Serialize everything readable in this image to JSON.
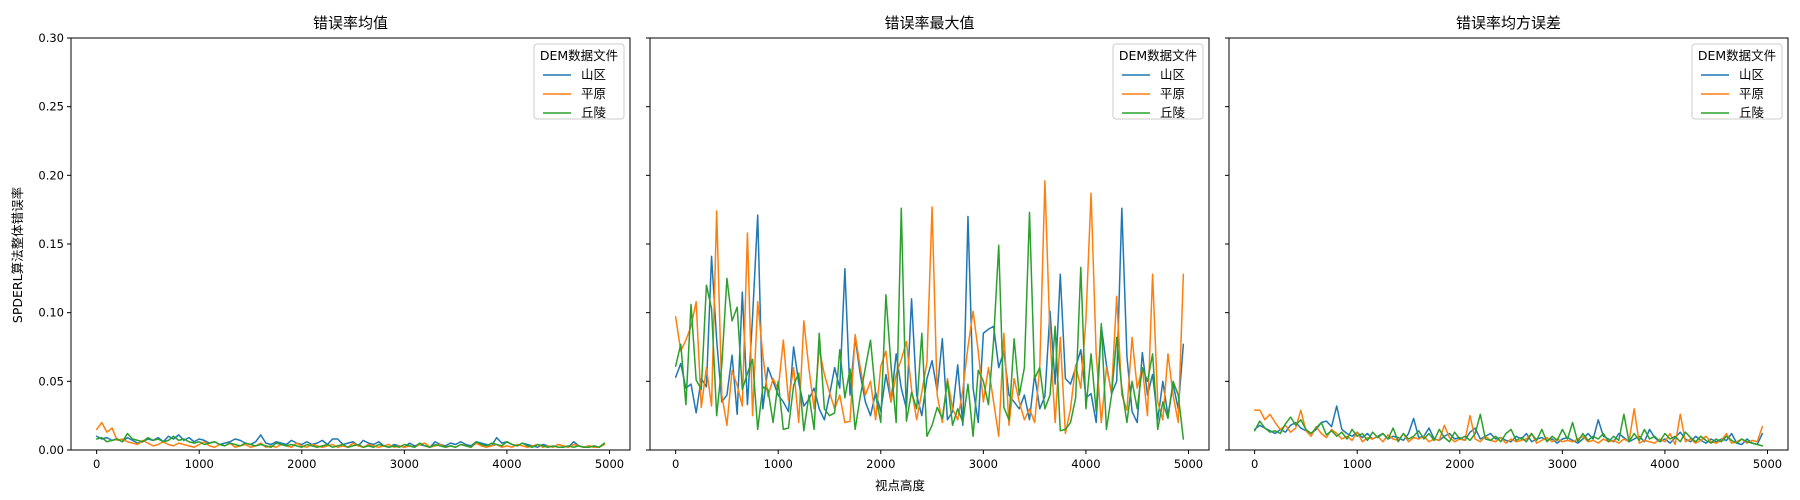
{
  "figure": {
    "ylabel": "SPDERL算法整体错误率",
    "xlabel": "视点高度"
  },
  "colors": {
    "山区": "#1f77b4",
    "平原": "#ff7f0e",
    "丘陵": "#2ca02c"
  },
  "chart_data": [
    {
      "type": "line",
      "title": "错误率均值",
      "xlabel": "",
      "ylabel": "SPDERL算法整体错误率",
      "xlim": [
        -250,
        5200
      ],
      "ylim": [
        0,
        0.3
      ],
      "xticks": [
        0,
        1000,
        2000,
        3000,
        4000,
        5000
      ],
      "yticks": [
        0.0,
        0.05,
        0.1,
        0.15,
        0.2,
        0.25,
        0.3
      ],
      "yticklabels": [
        "0.00",
        "0.05",
        "0.10",
        "0.15",
        "0.20",
        "0.25",
        "0.30"
      ],
      "legend": {
        "title": "DEM数据文件",
        "loc": "upper-right"
      },
      "x": {
        "start": 0,
        "step": 50,
        "count": 100
      },
      "series": [
        {
          "name": "山区",
          "color": "#1f77b4",
          "values": [
            0.01,
            0.008,
            0.009,
            0.007,
            0.008,
            0.006,
            0.009,
            0.007,
            0.005,
            0.006,
            0.008,
            0.007,
            0.009,
            0.006,
            0.01,
            0.008,
            0.011,
            0.007,
            0.009,
            0.006,
            0.008,
            0.007,
            0.005,
            0.006,
            0.004,
            0.005,
            0.006,
            0.008,
            0.007,
            0.005,
            0.004,
            0.006,
            0.011,
            0.005,
            0.004,
            0.006,
            0.005,
            0.004,
            0.007,
            0.005,
            0.004,
            0.006,
            0.004,
            0.005,
            0.007,
            0.004,
            0.008,
            0.008,
            0.004,
            0.005,
            0.006,
            0.003,
            0.007,
            0.005,
            0.004,
            0.006,
            0.003,
            0.002,
            0.004,
            0.003,
            0.002,
            0.005,
            0.003,
            0.004,
            0.003,
            0.002,
            0.006,
            0.004,
            0.003,
            0.005,
            0.004,
            0.006,
            0.004,
            0.003,
            0.006,
            0.005,
            0.004,
            0.003,
            0.009,
            0.005,
            0.006,
            0.004,
            0.003,
            0.005,
            0.004,
            0.003,
            0.002,
            0.004,
            0.003,
            0.002,
            0.004,
            0.003,
            0.002,
            0.006,
            0.003,
            0.002,
            0.003,
            0.002,
            0.002,
            0.004
          ]
        },
        {
          "name": "平原",
          "color": "#ff7f0e",
          "values": [
            0.015,
            0.02,
            0.013,
            0.016,
            0.007,
            0.008,
            0.006,
            0.005,
            0.004,
            0.007,
            0.005,
            0.003,
            0.004,
            0.006,
            0.004,
            0.003,
            0.005,
            0.004,
            0.003,
            0.002,
            0.004,
            0.006,
            0.003,
            0.002,
            0.004,
            0.003,
            0.005,
            0.002,
            0.003,
            0.004,
            0.002,
            0.003,
            0.005,
            0.002,
            0.003,
            0.002,
            0.004,
            0.003,
            0.002,
            0.005,
            0.003,
            0.002,
            0.004,
            0.003,
            0.002,
            0.003,
            0.004,
            0.002,
            0.003,
            0.002,
            0.005,
            0.003,
            0.002,
            0.004,
            0.003,
            0.002,
            0.003,
            0.004,
            0.002,
            0.003,
            0.002,
            0.003,
            0.002,
            0.004,
            0.005,
            0.002,
            0.003,
            0.004,
            0.002,
            0.003,
            0.002,
            0.004,
            0.003,
            0.002,
            0.005,
            0.003,
            0.002,
            0.003,
            0.004,
            0.002,
            0.003,
            0.002,
            0.004,
            0.003,
            0.002,
            0.003,
            0.004,
            0.002,
            0.003,
            0.002,
            0.004,
            0.003,
            0.002,
            0.004,
            0.003,
            0.002,
            0.003,
            0.002,
            0.002,
            0.004
          ]
        },
        {
          "name": "丘陵",
          "color": "#2ca02c",
          "values": [
            0.008,
            0.009,
            0.006,
            0.007,
            0.008,
            0.006,
            0.012,
            0.008,
            0.007,
            0.006,
            0.009,
            0.007,
            0.008,
            0.006,
            0.007,
            0.01,
            0.007,
            0.008,
            0.006,
            0.005,
            0.006,
            0.004,
            0.005,
            0.006,
            0.004,
            0.003,
            0.005,
            0.004,
            0.003,
            0.005,
            0.004,
            0.003,
            0.004,
            0.003,
            0.002,
            0.005,
            0.004,
            0.003,
            0.004,
            0.003,
            0.002,
            0.004,
            0.003,
            0.002,
            0.003,
            0.004,
            0.002,
            0.003,
            0.004,
            0.002,
            0.003,
            0.004,
            0.002,
            0.003,
            0.002,
            0.004,
            0.003,
            0.002,
            0.003,
            0.002,
            0.004,
            0.003,
            0.002,
            0.005,
            0.003,
            0.002,
            0.004,
            0.003,
            0.002,
            0.003,
            0.002,
            0.004,
            0.003,
            0.002,
            0.006,
            0.004,
            0.003,
            0.005,
            0.004,
            0.003,
            0.006,
            0.004,
            0.003,
            0.005,
            0.003,
            0.002,
            0.004,
            0.003,
            0.002,
            0.003,
            0.002,
            0.002,
            0.003,
            0.002,
            0.003,
            0.002,
            0.002,
            0.003,
            0.002,
            0.005
          ]
        }
      ]
    },
    {
      "type": "line",
      "title": "错误率最大值",
      "xlabel": "视点高度",
      "ylabel": "",
      "xlim": [
        -250,
        5200
      ],
      "ylim": [
        0,
        0.3
      ],
      "xticks": [
        0,
        1000,
        2000,
        3000,
        4000,
        5000
      ],
      "legend": {
        "title": "DEM数据文件",
        "loc": "upper-right"
      },
      "x": {
        "start": 0,
        "step": 50,
        "count": 100
      },
      "series": [
        {
          "name": "山区",
          "color": "#1f77b4",
          "values": [
            0.053,
            0.063,
            0.045,
            0.048,
            0.027,
            0.052,
            0.046,
            0.141,
            0.08,
            0.035,
            0.04,
            0.069,
            0.026,
            0.115,
            0.033,
            0.097,
            0.171,
            0.03,
            0.06,
            0.05,
            0.04,
            0.035,
            0.028,
            0.075,
            0.049,
            0.032,
            0.037,
            0.045,
            0.03,
            0.022,
            0.04,
            0.06,
            0.045,
            0.132,
            0.04,
            0.082,
            0.055,
            0.035,
            0.025,
            0.042,
            0.028,
            0.055,
            0.035,
            0.07,
            0.045,
            0.03,
            0.11,
            0.04,
            0.025,
            0.052,
            0.065,
            0.043,
            0.081,
            0.022,
            0.028,
            0.062,
            0.018,
            0.17,
            0.045,
            0.02,
            0.085,
            0.088,
            0.09,
            0.06,
            0.072,
            0.04,
            0.035,
            0.03,
            0.04,
            0.022,
            0.055,
            0.03,
            0.039,
            0.101,
            0.048,
            0.128,
            0.052,
            0.048,
            0.06,
            0.073,
            0.038,
            0.041,
            0.02,
            0.09,
            0.062,
            0.041,
            0.05,
            0.176,
            0.068,
            0.028,
            0.02,
            0.071,
            0.04,
            0.055,
            0.022,
            0.05,
            0.025,
            0.048,
            0.03,
            0.077
          ]
        },
        {
          "name": "平原",
          "color": "#ff7f0e",
          "values": [
            0.097,
            0.072,
            0.08,
            0.09,
            0.108,
            0.031,
            0.06,
            0.032,
            0.174,
            0.04,
            0.018,
            0.058,
            0.047,
            0.032,
            0.158,
            0.025,
            0.108,
            0.069,
            0.039,
            0.052,
            0.044,
            0.08,
            0.036,
            0.06,
            0.02,
            0.094,
            0.059,
            0.03,
            0.074,
            0.055,
            0.042,
            0.03,
            0.04,
            0.02,
            0.021,
            0.084,
            0.06,
            0.04,
            0.05,
            0.022,
            0.061,
            0.072,
            0.035,
            0.055,
            0.066,
            0.079,
            0.044,
            0.022,
            0.042,
            0.064,
            0.177,
            0.04,
            0.02,
            0.052,
            0.03,
            0.022,
            0.044,
            0.075,
            0.101,
            0.072,
            0.035,
            0.06,
            0.035,
            0.01,
            0.085,
            0.018,
            0.052,
            0.035,
            0.022,
            0.03,
            0.02,
            0.06,
            0.196,
            0.082,
            0.02,
            0.082,
            0.012,
            0.03,
            0.062,
            0.045,
            0.095,
            0.187,
            0.07,
            0.02,
            0.06,
            0.042,
            0.112,
            0.04,
            0.029,
            0.082,
            0.045,
            0.06,
            0.025,
            0.128,
            0.035,
            0.022,
            0.07,
            0.04,
            0.02,
            0.128
          ]
        },
        {
          "name": "丘陵",
          "color": "#2ca02c",
          "values": [
            0.061,
            0.077,
            0.033,
            0.106,
            0.051,
            0.044,
            0.12,
            0.103,
            0.025,
            0.062,
            0.125,
            0.094,
            0.104,
            0.044,
            0.056,
            0.066,
            0.015,
            0.046,
            0.044,
            0.02,
            0.05,
            0.015,
            0.016,
            0.047,
            0.056,
            0.014,
            0.04,
            0.015,
            0.085,
            0.03,
            0.025,
            0.027,
            0.073,
            0.038,
            0.059,
            0.015,
            0.039,
            0.06,
            0.08,
            0.04,
            0.02,
            0.113,
            0.061,
            0.02,
            0.176,
            0.021,
            0.042,
            0.03,
            0.085,
            0.01,
            0.018,
            0.031,
            0.023,
            0.05,
            0.018,
            0.03,
            0.02,
            0.048,
            0.01,
            0.058,
            0.05,
            0.033,
            0.08,
            0.149,
            0.031,
            0.022,
            0.081,
            0.04,
            0.06,
            0.173,
            0.052,
            0.06,
            0.03,
            0.04,
            0.09,
            0.014,
            0.015,
            0.02,
            0.038,
            0.133,
            0.03,
            0.07,
            0.028,
            0.092,
            0.015,
            0.04,
            0.082,
            0.045,
            0.02,
            0.05,
            0.03,
            0.06,
            0.05,
            0.07,
            0.015,
            0.035,
            0.023,
            0.05,
            0.04,
            0.008
          ]
        }
      ]
    },
    {
      "type": "line",
      "title": "错误率均方误差",
      "xlabel": "",
      "ylabel": "",
      "xlim": [
        -250,
        5200
      ],
      "ylim": [
        0,
        0.3
      ],
      "xticks": [
        0,
        1000,
        2000,
        3000,
        4000,
        5000
      ],
      "legend": {
        "title": "DEM数据文件",
        "loc": "upper-right"
      },
      "x": {
        "start": 0,
        "step": 50,
        "count": 100
      },
      "series": [
        {
          "name": "山区",
          "color": "#1f77b4",
          "values": [
            0.015,
            0.018,
            0.016,
            0.014,
            0.012,
            0.015,
            0.013,
            0.018,
            0.02,
            0.016,
            0.014,
            0.012,
            0.015,
            0.02,
            0.021,
            0.017,
            0.032,
            0.015,
            0.012,
            0.01,
            0.013,
            0.009,
            0.012,
            0.008,
            0.01,
            0.012,
            0.008,
            0.01,
            0.009,
            0.007,
            0.012,
            0.023,
            0.009,
            0.01,
            0.016,
            0.008,
            0.007,
            0.01,
            0.012,
            0.008,
            0.009,
            0.007,
            0.013,
            0.016,
            0.008,
            0.01,
            0.012,
            0.008,
            0.009,
            0.007,
            0.006,
            0.01,
            0.008,
            0.012,
            0.006,
            0.008,
            0.009,
            0.007,
            0.008,
            0.005,
            0.008,
            0.009,
            0.007,
            0.005,
            0.008,
            0.012,
            0.008,
            0.022,
            0.01,
            0.008,
            0.006,
            0.012,
            0.009,
            0.006,
            0.008,
            0.01,
            0.006,
            0.015,
            0.009,
            0.006,
            0.008,
            0.005,
            0.009,
            0.013,
            0.008,
            0.006,
            0.01,
            0.007,
            0.005,
            0.008,
            0.006,
            0.008,
            0.007,
            0.012,
            0.005,
            0.004,
            0.008,
            0.005,
            0.004,
            0.012
          ]
        },
        {
          "name": "平原",
          "color": "#ff7f0e",
          "values": [
            0.029,
            0.029,
            0.022,
            0.026,
            0.02,
            0.015,
            0.018,
            0.013,
            0.016,
            0.029,
            0.014,
            0.01,
            0.017,
            0.012,
            0.009,
            0.015,
            0.012,
            0.008,
            0.01,
            0.007,
            0.013,
            0.006,
            0.009,
            0.008,
            0.01,
            0.006,
            0.011,
            0.008,
            0.007,
            0.012,
            0.006,
            0.009,
            0.008,
            0.01,
            0.006,
            0.008,
            0.007,
            0.018,
            0.009,
            0.006,
            0.008,
            0.007,
            0.025,
            0.008,
            0.006,
            0.01,
            0.007,
            0.006,
            0.009,
            0.005,
            0.008,
            0.006,
            0.007,
            0.008,
            0.012,
            0.005,
            0.007,
            0.009,
            0.006,
            0.008,
            0.006,
            0.007,
            0.006,
            0.008,
            0.01,
            0.006,
            0.007,
            0.005,
            0.008,
            0.006,
            0.007,
            0.005,
            0.008,
            0.006,
            0.03,
            0.005,
            0.007,
            0.006,
            0.005,
            0.008,
            0.006,
            0.012,
            0.004,
            0.026,
            0.006,
            0.008,
            0.005,
            0.007,
            0.01,
            0.006,
            0.005,
            0.007,
            0.012,
            0.005,
            0.006,
            0.008,
            0.005,
            0.007,
            0.006,
            0.017
          ]
        },
        {
          "name": "丘陵",
          "color": "#2ca02c",
          "values": [
            0.014,
            0.021,
            0.016,
            0.013,
            0.014,
            0.012,
            0.019,
            0.024,
            0.018,
            0.022,
            0.015,
            0.012,
            0.016,
            0.02,
            0.011,
            0.014,
            0.01,
            0.013,
            0.008,
            0.015,
            0.01,
            0.012,
            0.007,
            0.013,
            0.009,
            0.012,
            0.008,
            0.016,
            0.006,
            0.012,
            0.008,
            0.01,
            0.014,
            0.008,
            0.012,
            0.007,
            0.015,
            0.009,
            0.006,
            0.013,
            0.008,
            0.01,
            0.007,
            0.012,
            0.026,
            0.008,
            0.007,
            0.01,
            0.006,
            0.012,
            0.015,
            0.007,
            0.009,
            0.006,
            0.012,
            0.007,
            0.015,
            0.006,
            0.01,
            0.007,
            0.015,
            0.008,
            0.02,
            0.006,
            0.012,
            0.007,
            0.01,
            0.008,
            0.012,
            0.006,
            0.01,
            0.007,
            0.026,
            0.006,
            0.012,
            0.007,
            0.015,
            0.008,
            0.01,
            0.006,
            0.012,
            0.008,
            0.01,
            0.006,
            0.013,
            0.009,
            0.006,
            0.01,
            0.007,
            0.005,
            0.008,
            0.006,
            0.01,
            0.007,
            0.005,
            0.008,
            0.006,
            0.005,
            0.004,
            0.003
          ]
        }
      ]
    }
  ]
}
